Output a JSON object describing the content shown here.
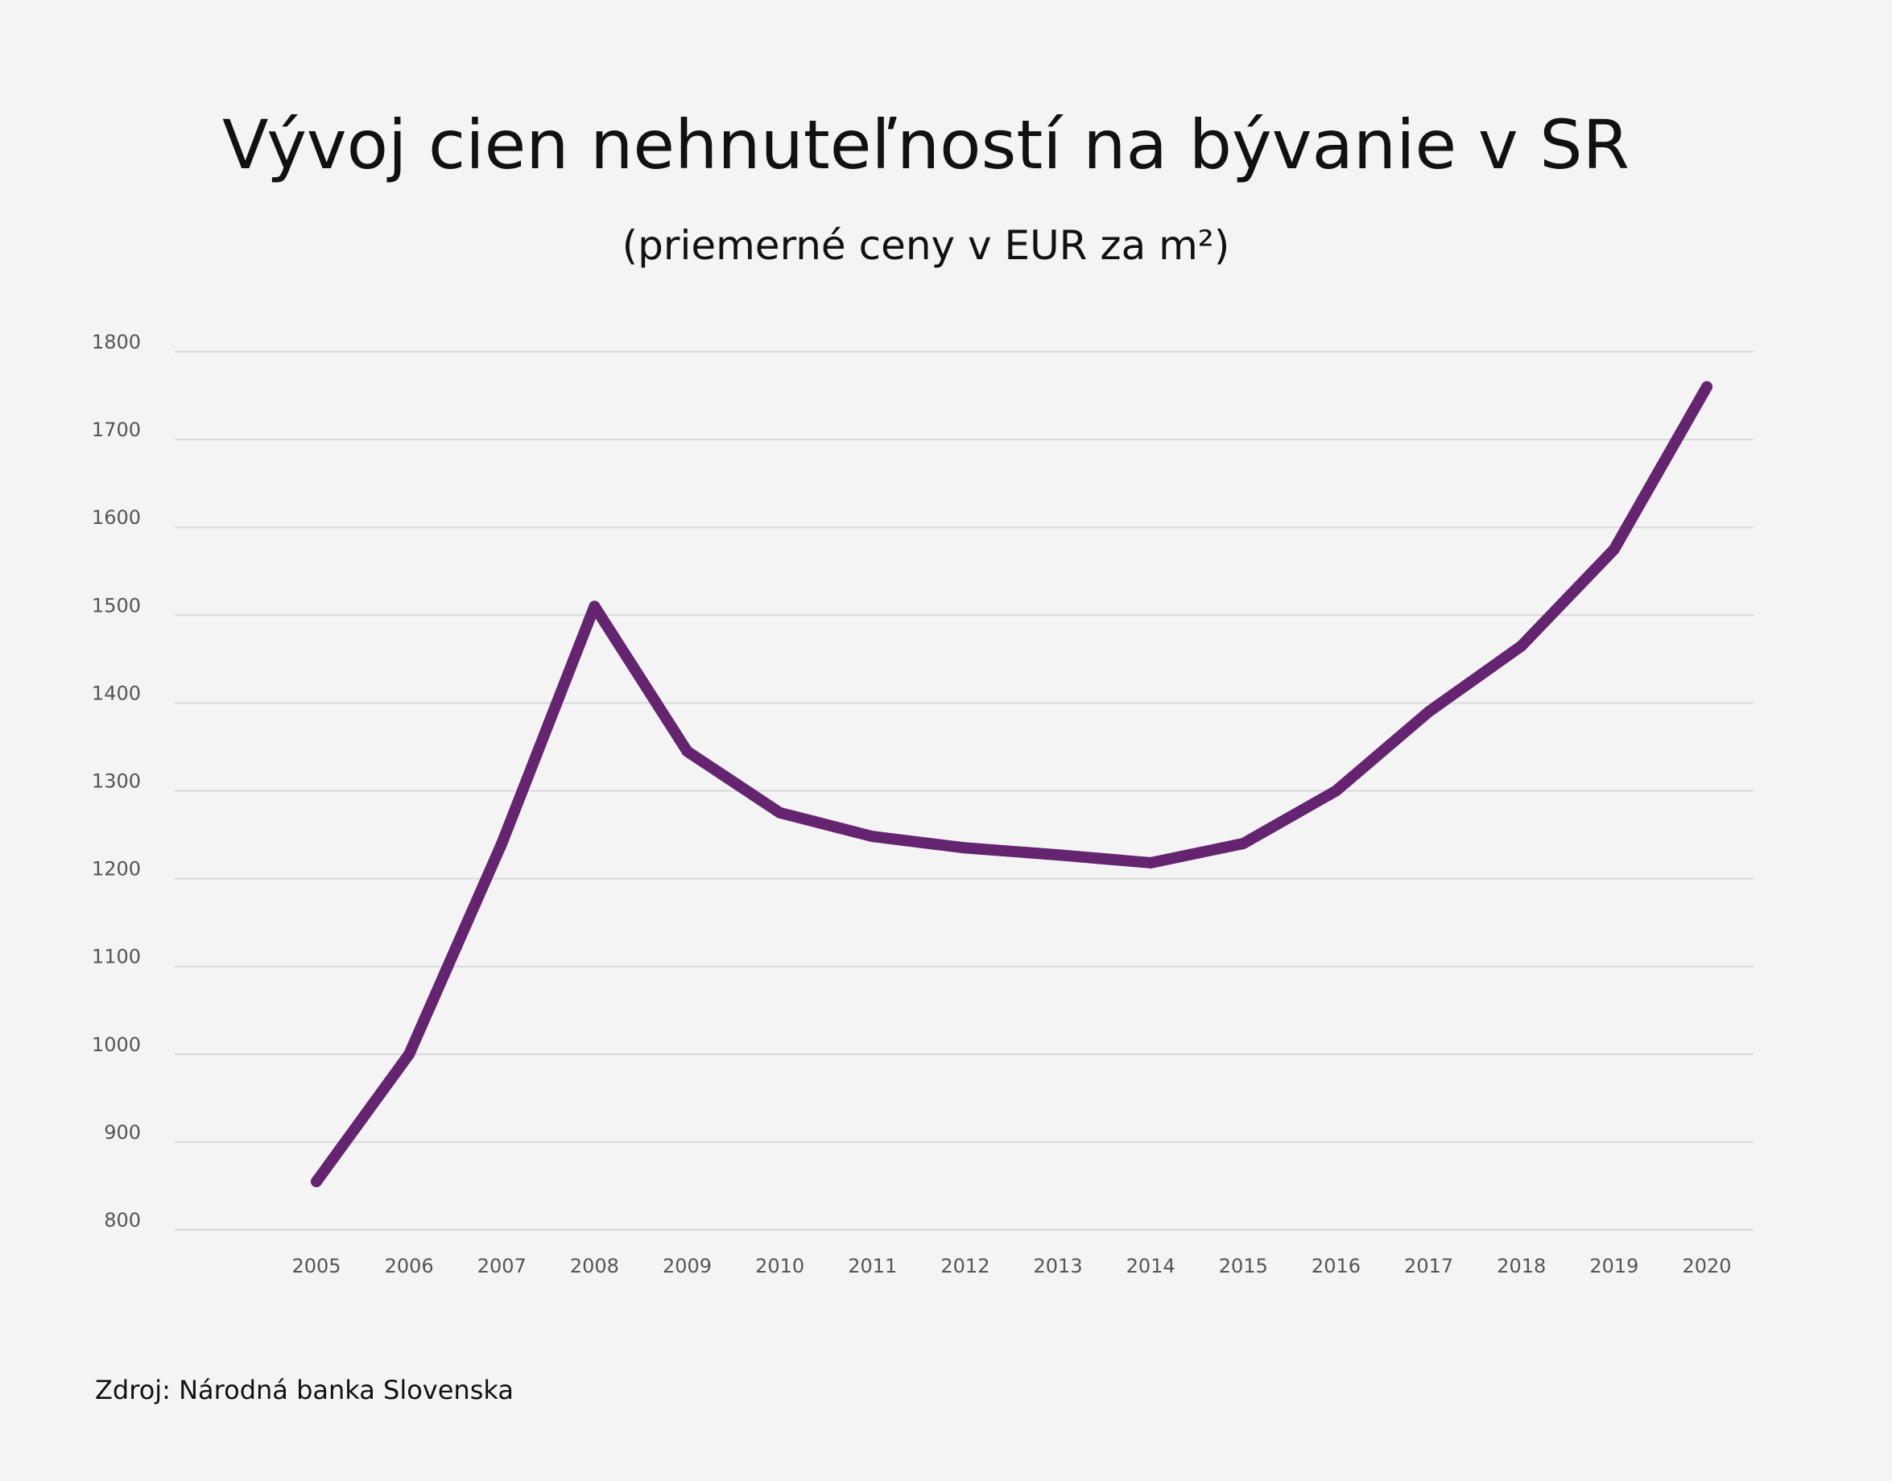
{
  "title": "Vývoj cien nehnuteľností na bývanie v SR",
  "subtitle": "(priemerné ceny v EUR za m²)",
  "source": "Zdroj: Národná banka Slovenska",
  "colors": {
    "background": "#f4f4f4",
    "line": "#642470",
    "grid": "#d9d9d9"
  },
  "chart_data": {
    "type": "line",
    "title": "Vývoj cien nehnuteľností na bývanie v SR",
    "subtitle": "(priemerné ceny v EUR za m²)",
    "xlabel": "",
    "ylabel": "",
    "ylim": [
      800,
      1800
    ],
    "yticks": [
      800,
      900,
      1000,
      1100,
      1200,
      1300,
      1400,
      1500,
      1600,
      1700,
      1800
    ],
    "grid": true,
    "legend": "none",
    "categories": [
      "2005",
      "2006",
      "2007",
      "2008",
      "2009",
      "2010",
      "2011",
      "2012",
      "2013",
      "2014",
      "2015",
      "2016",
      "2017",
      "2018",
      "2019",
      "2020"
    ],
    "series": [
      {
        "values": [
          855,
          1000,
          1240,
          1510,
          1345,
          1275,
          1248,
          1235,
          1227,
          1218,
          1240,
          1300,
          1390,
          1465,
          1575,
          1760
        ]
      }
    ]
  }
}
